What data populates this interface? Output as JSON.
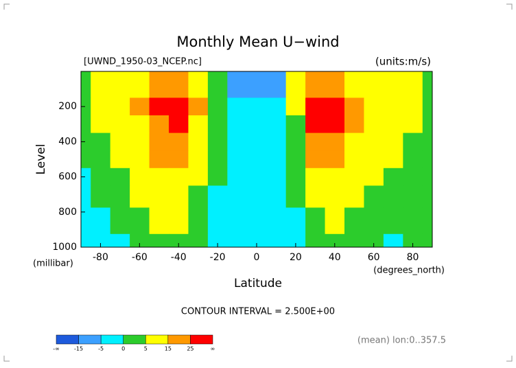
{
  "chart_data": {
    "type": "heatmap",
    "title": "Monthly Mean U−wind",
    "subtitle_left": "[UWND_1950-03_NCEP.nc]",
    "subtitle_right": "(units:m/s)",
    "x_label": "Latitude",
    "x_unit": "(degrees_north)",
    "y_label": "Level",
    "y_unit": "(millibar)",
    "annotation": "CONTOUR INTERVAL = 2.500E+00",
    "footnote": "(mean) lon:0..357.5",
    "x": [
      -90,
      -80,
      -70,
      -60,
      -50,
      -40,
      -30,
      -20,
      -10,
      0,
      10,
      20,
      30,
      40,
      50,
      60,
      70,
      80,
      90
    ],
    "y": [
      100,
      200,
      300,
      400,
      500,
      600,
      700,
      850,
      1000
    ],
    "z": [
      [
        0,
        5,
        8,
        12,
        18,
        20,
        12,
        3,
        -8,
        -15,
        -8,
        5,
        20,
        18,
        12,
        8,
        6,
        5,
        0
      ],
      [
        0,
        6,
        10,
        15,
        28,
        30,
        15,
        2,
        -3,
        -5,
        -3,
        5,
        32,
        28,
        15,
        10,
        8,
        6,
        0
      ],
      [
        0,
        5,
        8,
        12,
        22,
        28,
        12,
        2,
        -2,
        -3,
        -2,
        3,
        25,
        25,
        15,
        10,
        8,
        6,
        0
      ],
      [
        0,
        4,
        6,
        10,
        18,
        24,
        10,
        2,
        -2,
        -2,
        -2,
        3,
        18,
        20,
        12,
        8,
        6,
        4,
        0
      ],
      [
        0,
        3,
        5,
        8,
        15,
        18,
        8,
        1,
        -1,
        -3,
        -3,
        2,
        15,
        16,
        10,
        7,
        5,
        3,
        0
      ],
      [
        -2,
        2,
        4,
        6,
        12,
        14,
        6,
        0,
        -1,
        -3,
        -4,
        1,
        12,
        12,
        8,
        5,
        4,
        2,
        0
      ],
      [
        -2,
        0,
        2,
        5,
        10,
        10,
        4,
        -1,
        -2,
        -3,
        -5,
        0,
        9,
        10,
        6,
        3,
        2,
        1,
        0
      ],
      [
        -3,
        -2,
        0,
        3,
        6,
        6,
        2,
        -1,
        -3,
        -3,
        -5,
        -2,
        4,
        5,
        4,
        1,
        0,
        0,
        0
      ],
      [
        -3,
        -2,
        -1,
        2,
        4,
        3,
        0,
        -2,
        -4,
        -3,
        -2,
        -2,
        1,
        2,
        3,
        0,
        -1,
        0,
        0
      ]
    ],
    "xlim": [
      -90,
      90
    ],
    "xticks": [
      -80,
      -60,
      -40,
      -20,
      0,
      20,
      40,
      60,
      80
    ],
    "ylim": [
      1000,
      0
    ],
    "yticks": [
      200,
      400,
      600,
      800,
      1000
    ],
    "colorbar": {
      "bounds": [
        -15,
        -5,
        0,
        5,
        15,
        25
      ],
      "end_labels": [
        "-∞",
        "∞"
      ],
      "colors": [
        "#1e5adc",
        "#3ca0ff",
        "#00f0ff",
        "#2ccc2c",
        "#ffff00",
        "#ff9900",
        "#ff0000"
      ]
    }
  }
}
